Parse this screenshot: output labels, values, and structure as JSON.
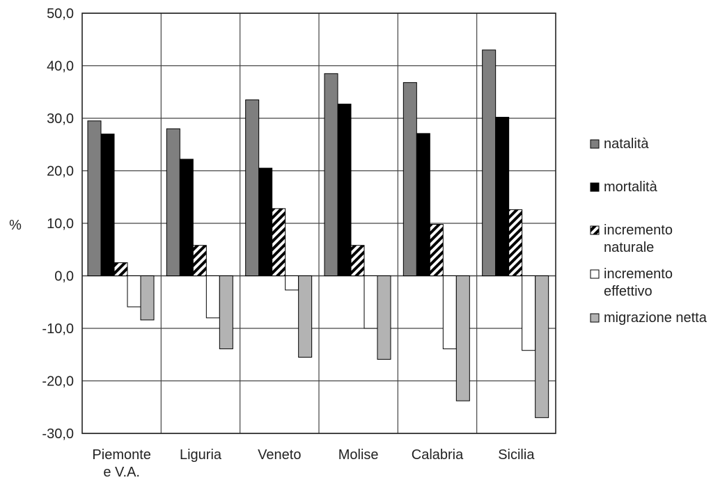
{
  "chart_data": {
    "type": "bar",
    "title": "",
    "xlabel": "",
    "ylabel": "%",
    "ylim": [
      -30,
      50
    ],
    "yticks": [
      -30,
      -20,
      -10,
      0,
      10,
      20,
      30,
      40,
      50
    ],
    "ytick_labels": [
      "-30,0",
      "-20,0",
      "-10,0",
      "0,0",
      "10,0",
      "20,0",
      "30,0",
      "40,0",
      "50,0"
    ],
    "grid": "horizontal and vertical",
    "legend_position": "right",
    "categories": [
      [
        "Piemonte",
        "e V.A."
      ],
      [
        "Liguria"
      ],
      [
        "Veneto"
      ],
      [
        "Molise"
      ],
      [
        "Calabria"
      ],
      [
        "Sicilia"
      ]
    ],
    "series": [
      {
        "name": [
          "natalità"
        ],
        "fill": "gray",
        "values": [
          29.5,
          28.0,
          33.5,
          38.5,
          36.8,
          43.0
        ]
      },
      {
        "name": [
          "mortalità"
        ],
        "fill": "black",
        "values": [
          27.0,
          22.2,
          20.5,
          32.7,
          27.1,
          30.2
        ]
      },
      {
        "name": [
          "incremento",
          "naturale"
        ],
        "fill": "hatch",
        "values": [
          2.5,
          5.8,
          12.8,
          5.8,
          9.8,
          12.6
        ]
      },
      {
        "name": [
          "incremento",
          "effettivo"
        ],
        "fill": "white",
        "values": [
          -5.9,
          -8.0,
          -2.7,
          -10.0,
          -13.9,
          -14.2
        ]
      },
      {
        "name": [
          "migrazione netta"
        ],
        "fill": "lightgray",
        "values": [
          -8.4,
          -13.9,
          -15.5,
          -15.9,
          -23.8,
          -27.0
        ]
      }
    ],
    "colors": {
      "gray": "#7f7f7f",
      "black": "#000000",
      "white": "#ffffff",
      "lightgray": "#b3b3b3",
      "hatch": "#000000"
    }
  }
}
